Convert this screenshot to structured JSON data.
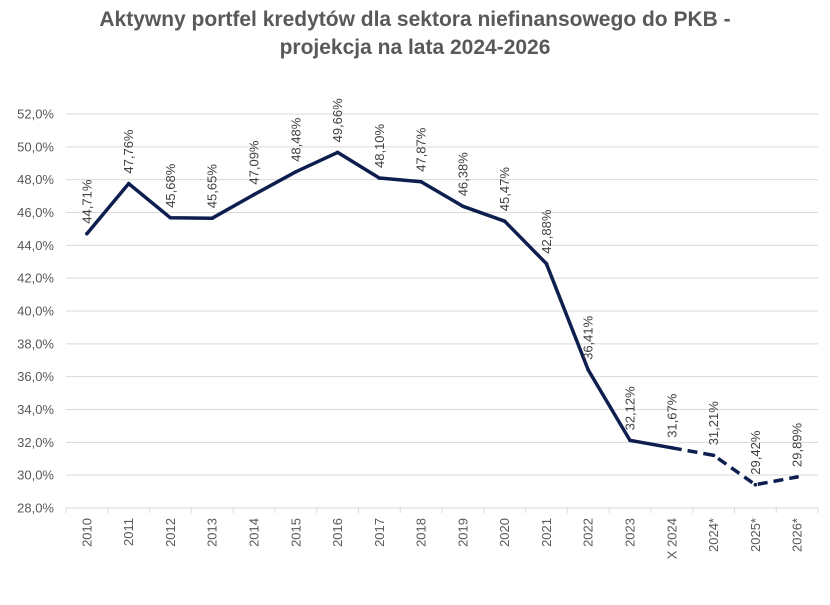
{
  "chart_data": {
    "type": "line",
    "title_line1": "Aktywny portfel kredytów dla sektora niefinansowego do PKB -",
    "title_line2": "projekcja na lata 2024-2026",
    "categories": [
      "2010",
      "2011",
      "2012",
      "2013",
      "2014",
      "2015",
      "2016",
      "2017",
      "2018",
      "2019",
      "2020",
      "2021",
      "2022",
      "2023",
      "X 2024",
      "2024*",
      "2025*",
      "2026*"
    ],
    "values": [
      44.71,
      47.76,
      45.68,
      45.65,
      47.09,
      48.48,
      49.66,
      48.1,
      47.87,
      46.38,
      45.47,
      42.88,
      36.41,
      32.12,
      31.67,
      31.21,
      29.42,
      29.89
    ],
    "value_labels": [
      "44,71%",
      "47,76%",
      "45,68%",
      "45,65%",
      "47,09%",
      "48,48%",
      "49,66%",
      "48,10%",
      "47,87%",
      "46,38%",
      "45,47%",
      "42,88%",
      "36,41%",
      "32,12%",
      "31,67%",
      "31,21%",
      "29,42%",
      "29,89%"
    ],
    "y_ticks": [
      28,
      30,
      32,
      34,
      36,
      38,
      40,
      42,
      44,
      46,
      48,
      50,
      52
    ],
    "y_tick_labels": [
      "28,0%",
      "30,0%",
      "32,0%",
      "34,0%",
      "36,0%",
      "38,0%",
      "40,0%",
      "42,0%",
      "44,0%",
      "46,0%",
      "48,0%",
      "50,0%",
      "52,0%"
    ],
    "ylim": [
      28,
      52
    ],
    "grid": true,
    "solid_until_index": 14,
    "projection_start_index": 14,
    "line_color": "#0e1f4f",
    "grid_color": "#d9d9d9",
    "text_color": "#595959"
  }
}
